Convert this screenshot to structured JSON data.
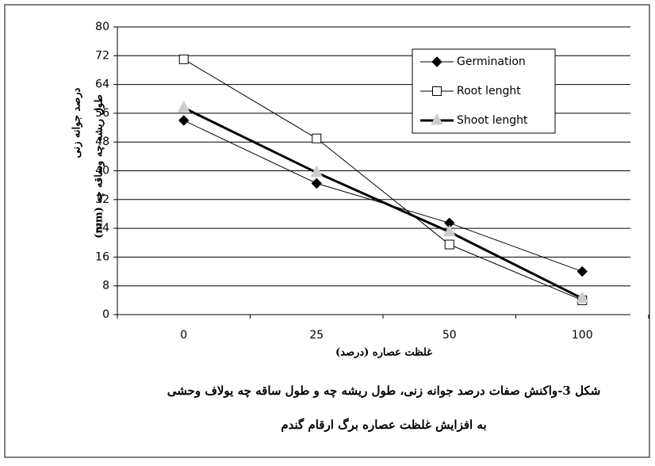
{
  "chart_data": {
    "type": "line",
    "ylabel": [
      "درصد جوانه زنی",
      "طول ریشه چه  وساقه چه  (mm)"
    ],
    "xlabel": "غلظت عصاره (درصد)",
    "caption": [
      "شکل 3-واکنش صفات درصد جوانه زنی، طول ریشه چه و طول ساقه چه یولاف وحشی",
      "به افزایش غلظت عصاره برگ ارقام گندم"
    ],
    "categories": [
      "0",
      "25",
      "50",
      "100"
    ],
    "series": [
      {
        "name": "Germination",
        "color": "#000000",
        "marker": "diamond",
        "marker_fill": "#000000",
        "line_width": 1,
        "values": [
          54,
          36.5,
          25.5,
          12
        ]
      },
      {
        "name": "Root lenght",
        "color": "#000000",
        "marker": "square",
        "marker_fill": "#ffffff",
        "line_width": 1,
        "values": [
          71,
          49,
          19.5,
          4
        ]
      },
      {
        "name": "Shoot lenght",
        "color": "#000000",
        "marker": "triangle",
        "marker_fill": "#cccccc",
        "line_width": 3,
        "values": [
          57.5,
          39.5,
          23,
          4.5
        ]
      }
    ],
    "ylim": [
      0,
      80
    ],
    "yticks": [
      0,
      8,
      16,
      24,
      32,
      40,
      48,
      56,
      64,
      72,
      80
    ],
    "grid": true,
    "legend": "top-right"
  }
}
